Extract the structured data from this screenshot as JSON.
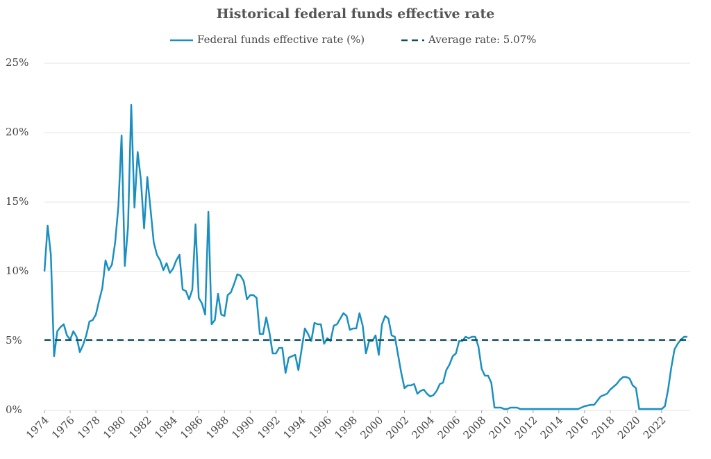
{
  "chart_data": {
    "type": "line",
    "title": "Historical federal funds effective rate",
    "xlim": [
      1974,
      2024
    ],
    "xticks": [
      1974,
      1976,
      1978,
      1980,
      1982,
      1984,
      1986,
      1988,
      1990,
      1992,
      1994,
      1996,
      1998,
      2000,
      2002,
      2004,
      2006,
      2008,
      2010,
      2012,
      2014,
      2016,
      2018,
      2020,
      2022
    ],
    "ylim": [
      0,
      25
    ],
    "yticks": [
      {
        "value": 0,
        "label": "0%"
      },
      {
        "value": 5,
        "label": "5%"
      },
      {
        "value": 10,
        "label": "10%"
      },
      {
        "value": 15,
        "label": "15%"
      },
      {
        "value": 20,
        "label": "20%"
      },
      {
        "value": 25,
        "label": "25%"
      }
    ],
    "grid": true,
    "legend": "top",
    "x": [
      1974,
      1974.25,
      1974.5,
      1974.75,
      1975,
      1975.25,
      1975.5,
      1975.75,
      1976,
      1976.25,
      1976.5,
      1976.75,
      1977,
      1977.25,
      1977.5,
      1977.75,
      1978,
      1978.25,
      1978.5,
      1978.75,
      1979,
      1979.25,
      1979.5,
      1979.75,
      1980,
      1980.25,
      1980.5,
      1980.75,
      1981,
      1981.25,
      1981.5,
      1981.75,
      1982,
      1982.25,
      1982.5,
      1982.75,
      1983,
      1983.25,
      1983.5,
      1983.75,
      1984,
      1984.25,
      1984.5,
      1984.75,
      1985,
      1985.25,
      1985.5,
      1985.75,
      1986,
      1986.25,
      1986.5,
      1986.75,
      1987,
      1987.25,
      1987.5,
      1987.75,
      1988,
      1988.25,
      1988.5,
      1988.75,
      1989,
      1989.25,
      1989.5,
      1989.75,
      1990,
      1990.25,
      1990.5,
      1990.75,
      1991,
      1991.25,
      1991.5,
      1991.75,
      1992,
      1992.25,
      1992.5,
      1992.75,
      1993,
      1993.25,
      1993.5,
      1993.75,
      1994,
      1994.25,
      1994.5,
      1994.75,
      1995,
      1995.25,
      1995.5,
      1995.75,
      1996,
      1996.25,
      1996.5,
      1996.75,
      1997,
      1997.25,
      1997.5,
      1997.75,
      1998,
      1998.25,
      1998.5,
      1998.75,
      1999,
      1999.25,
      1999.5,
      1999.75,
      2000,
      2000.25,
      2000.5,
      2000.75,
      2001,
      2001.25,
      2001.5,
      2001.75,
      2002,
      2002.25,
      2002.5,
      2002.75,
      2003,
      2003.25,
      2003.5,
      2003.75,
      2004,
      2004.25,
      2004.5,
      2004.75,
      2005,
      2005.25,
      2005.5,
      2005.75,
      2006,
      2006.25,
      2006.5,
      2006.75,
      2007,
      2007.25,
      2007.5,
      2007.75,
      2008,
      2008.25,
      2008.5,
      2008.75,
      2009,
      2009.25,
      2009.5,
      2009.75,
      2010,
      2010.25,
      2010.5,
      2010.75,
      2011,
      2011.25,
      2011.5,
      2011.75,
      2012,
      2012.25,
      2012.5,
      2012.75,
      2013,
      2013.25,
      2013.5,
      2013.75,
      2014,
      2014.25,
      2014.5,
      2014.75,
      2015,
      2015.25,
      2015.5,
      2015.75,
      2016,
      2016.25,
      2016.5,
      2016.75,
      2017,
      2017.25,
      2017.5,
      2017.75,
      2018,
      2018.25,
      2018.5,
      2018.75,
      2019,
      2019.25,
      2019.5,
      2019.75,
      2020,
      2020.25,
      2020.5,
      2020.75,
      2021,
      2021.25,
      2021.5,
      2021.75,
      2022,
      2022.25,
      2022.5,
      2022.75,
      2023,
      2023.25,
      2023.5,
      2023.75,
      2024
    ],
    "series": [
      {
        "name": "Federal funds effective rate (%)",
        "color": "#1a8fbf",
        "values": [
          10,
          13.3,
          11.2,
          3.9,
          5.7,
          6.0,
          6.2,
          5.4,
          5.1,
          5.7,
          5.3,
          4.2,
          4.7,
          5.4,
          6.4,
          6.5,
          6.9,
          7.9,
          8.8,
          10.8,
          10.1,
          10.5,
          12.1,
          14.7,
          19.8,
          10.4,
          13.2,
          22.0,
          14.6,
          18.6,
          16.6,
          13.1,
          16.8,
          14.5,
          12.1,
          11.2,
          10.8,
          10.1,
          10.6,
          9.9,
          10.2,
          10.8,
          11.2,
          8.7,
          8.6,
          8.0,
          8.7,
          13.4,
          8.1,
          7.7,
          6.9,
          14.3,
          6.2,
          6.5,
          8.4,
          6.9,
          6.8,
          8.3,
          8.5,
          9.1,
          9.8,
          9.7,
          9.3,
          8.0,
          8.3,
          8.3,
          8.1,
          5.5,
          5.5,
          6.7,
          5.6,
          4.1,
          4.1,
          4.5,
          4.5,
          2.7,
          3.8,
          3.9,
          4.0,
          2.9,
          4.4,
          5.9,
          5.5,
          5.0,
          6.3,
          6.2,
          6.2,
          4.8,
          5.2,
          5.0,
          6.1,
          6.2,
          6.6,
          7.0,
          6.8,
          5.8,
          5.9,
          5.9,
          7.0,
          6.1,
          4.1,
          5.0,
          5.0,
          5.4,
          4.0,
          6.2,
          6.8,
          6.6,
          5.4,
          5.3,
          4.0,
          2.7,
          1.6,
          1.8,
          1.8,
          1.9,
          1.2,
          1.4,
          1.5,
          1.2,
          1.0,
          1.1,
          1.4,
          1.9,
          2.0,
          2.9,
          3.3,
          3.9,
          4.1,
          5.0,
          5.0,
          5.3,
          5.2,
          5.3,
          5.3,
          4.6,
          3.0,
          2.5,
          2.5,
          2.0,
          0.2,
          0.2,
          0.2,
          0.1,
          0.1,
          0.2,
          0.2,
          0.2,
          0.1,
          0.1,
          0.1,
          0.1,
          0.1,
          0.1,
          0.1,
          0.1,
          0.1,
          0.1,
          0.1,
          0.1,
          0.1,
          0.1,
          0.1,
          0.1,
          0.1,
          0.1,
          0.1,
          0.2,
          0.3,
          0.35,
          0.4,
          0.4,
          0.7,
          1.0,
          1.1,
          1.2,
          1.5,
          1.7,
          1.9,
          2.2,
          2.4,
          2.4,
          2.3,
          1.8,
          1.6,
          0.1,
          0.1,
          0.1,
          0.1,
          0.1,
          0.1,
          0.1,
          0.1,
          0.3,
          1.5,
          3.1,
          4.4,
          4.8,
          5.1,
          5.3,
          5.3
        ]
      }
    ],
    "average": {
      "name": "Average rate: 5.07%",
      "value": 5.07,
      "color": "#0d4f5e"
    }
  }
}
